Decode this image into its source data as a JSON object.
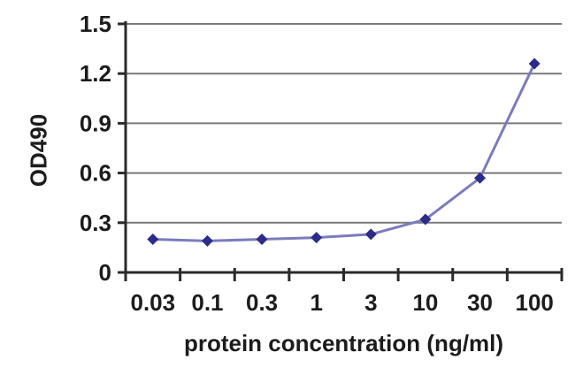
{
  "chart_data": {
    "type": "line",
    "title": "",
    "xlabel": "protein concentration (ng/ml)",
    "ylabel": "OD490",
    "categories": [
      "0.03",
      "0.1",
      "0.3",
      "1",
      "3",
      "10",
      "30",
      "100"
    ],
    "series": [
      {
        "name": "OD490",
        "values": [
          0.2,
          0.19,
          0.2,
          0.21,
          0.23,
          0.32,
          0.57,
          1.26
        ]
      }
    ],
    "x_scale": "categorical-log-labels",
    "ylim": [
      0,
      1.5
    ],
    "yticks": [
      0,
      0.3,
      0.6,
      0.9,
      1.2,
      1.5
    ],
    "ytick_labels": [
      "0",
      "0.3",
      "0.6",
      "0.9",
      "1.2",
      "1.5"
    ],
    "grid": true,
    "legend_position": "none",
    "marker": "diamond",
    "colors": {
      "line": "#7b7bbd",
      "marker": "#2c2c8a",
      "grid": "#7a7a7a",
      "axis": "#2a2a2a",
      "text": "#1c1c1c",
      "background": "#ffffff"
    }
  }
}
